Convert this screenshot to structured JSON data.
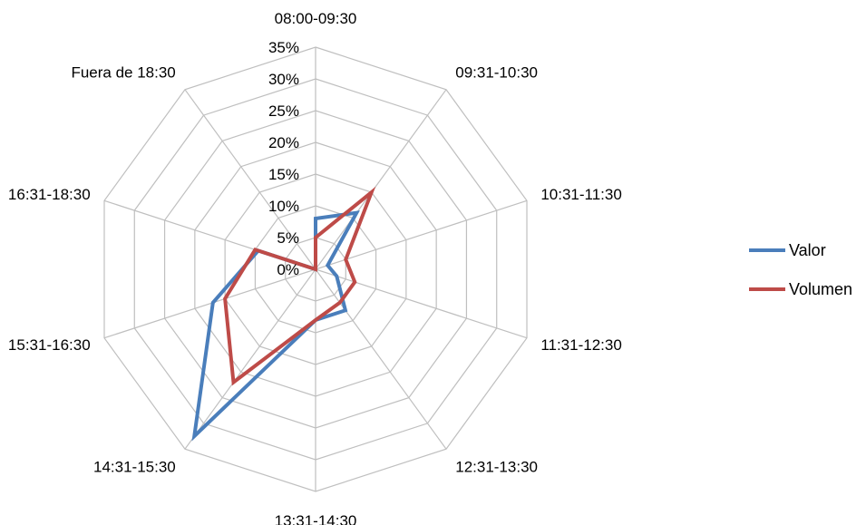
{
  "chart_data": {
    "type": "radar",
    "categories": [
      "08:00-09:30",
      "09:31-10:30",
      "10:31-11:30",
      "11:31-12:30",
      "12:31-13:30",
      "13:31-14:30",
      "14:31-15:30",
      "15:31-16:30",
      "16:31-18:30",
      "Fuera de 18:30"
    ],
    "series": [
      {
        "name": "Valor",
        "color": "#4a7ebb",
        "values": [
          8,
          11,
          2,
          3.5,
          8,
          8,
          32.5,
          17,
          9.5,
          0
        ]
      },
      {
        "name": "Volumen",
        "color": "#be4b48",
        "values": [
          5,
          15,
          5,
          6.5,
          6.5,
          8,
          22,
          15,
          10,
          0
        ]
      }
    ],
    "rlim": [
      0,
      35
    ],
    "ticks": [
      "0%",
      "5%",
      "10%",
      "15%",
      "20%",
      "25%",
      "30%",
      "35%"
    ],
    "tick_values": [
      0,
      5,
      10,
      15,
      20,
      25,
      30,
      35
    ],
    "grid": true,
    "legend_position": "right"
  }
}
